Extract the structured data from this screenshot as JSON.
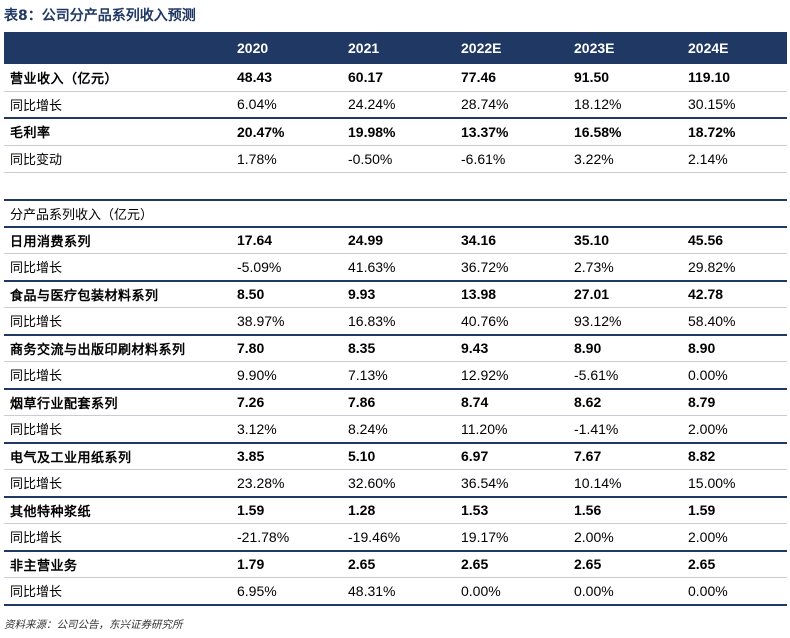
{
  "caption": "表8：公司分产品系列收入预测",
  "columns": [
    "",
    "2020",
    "2021",
    "2022E",
    "2023E",
    "2024E"
  ],
  "rows": [
    {
      "label": "营业收入（亿元）",
      "values": [
        "48.43",
        "60.17",
        "77.46",
        "91.50",
        "119.10"
      ],
      "bold": true
    },
    {
      "label": "同比增长",
      "values": [
        "6.04%",
        "24.24%",
        "28.74%",
        "18.12%",
        "30.15%"
      ],
      "bold": false
    },
    {
      "label": "毛利率",
      "values": [
        "20.47%",
        "19.98%",
        "13.37%",
        "16.58%",
        "18.72%"
      ],
      "bold": true
    },
    {
      "label": "同比变动",
      "values": [
        "1.78%",
        "-0.50%",
        "-6.61%",
        "3.22%",
        "2.14%"
      ],
      "bold": false
    },
    {
      "label": "",
      "values": [
        "",
        "",
        "",
        "",
        ""
      ],
      "bold": false,
      "spacer": true
    },
    {
      "label": "分产品系列收入（亿元）",
      "values": [
        "",
        "",
        "",
        "",
        ""
      ],
      "bold": false,
      "section": true
    },
    {
      "label": "日用消费系列",
      "values": [
        "17.64",
        "24.99",
        "34.16",
        "35.10",
        "45.56"
      ],
      "bold": true
    },
    {
      "label": "同比增长",
      "values": [
        "-5.09%",
        "41.63%",
        "36.72%",
        "2.73%",
        "29.82%"
      ],
      "bold": false
    },
    {
      "label": "食品与医疗包装材料系列",
      "values": [
        "8.50",
        "9.93",
        "13.98",
        "27.01",
        "42.78"
      ],
      "bold": true
    },
    {
      "label": "同比增长",
      "values": [
        "38.97%",
        "16.83%",
        "40.76%",
        "93.12%",
        "58.40%"
      ],
      "bold": false
    },
    {
      "label": "商务交流与出版印刷材料系列",
      "values": [
        "7.80",
        "8.35",
        "9.43",
        "8.90",
        "8.90"
      ],
      "bold": true
    },
    {
      "label": "同比增长",
      "values": [
        "9.90%",
        "7.13%",
        "12.92%",
        "-5.61%",
        "0.00%"
      ],
      "bold": false
    },
    {
      "label": "烟草行业配套系列",
      "values": [
        "7.26",
        "7.86",
        "8.74",
        "8.62",
        "8.79"
      ],
      "bold": true
    },
    {
      "label": "同比增长",
      "values": [
        "3.12%",
        "8.24%",
        "11.20%",
        "-1.41%",
        "2.00%"
      ],
      "bold": false
    },
    {
      "label": "电气及工业用纸系列",
      "values": [
        "3.85",
        "5.10",
        "6.97",
        "7.67",
        "8.82"
      ],
      "bold": true
    },
    {
      "label": "同比增长",
      "values": [
        "23.28%",
        "32.60%",
        "36.54%",
        "10.14%",
        "15.00%"
      ],
      "bold": false
    },
    {
      "label": "其他特种浆纸",
      "values": [
        "1.59",
        "1.28",
        "1.53",
        "1.56",
        "1.59"
      ],
      "bold": true
    },
    {
      "label": "同比增长",
      "values": [
        "-21.78%",
        "-19.46%",
        "19.17%",
        "2.00%",
        "2.00%"
      ],
      "bold": false
    },
    {
      "label": "非主营业务",
      "values": [
        "1.79",
        "2.65",
        "2.65",
        "2.65",
        "2.65"
      ],
      "bold": true
    },
    {
      "label": "同比增长",
      "values": [
        "6.95%",
        "48.31%",
        "0.00%",
        "0.00%",
        "0.00%"
      ],
      "bold": false
    }
  ],
  "source": "资料来源：公司公告，东兴证券研究所"
}
